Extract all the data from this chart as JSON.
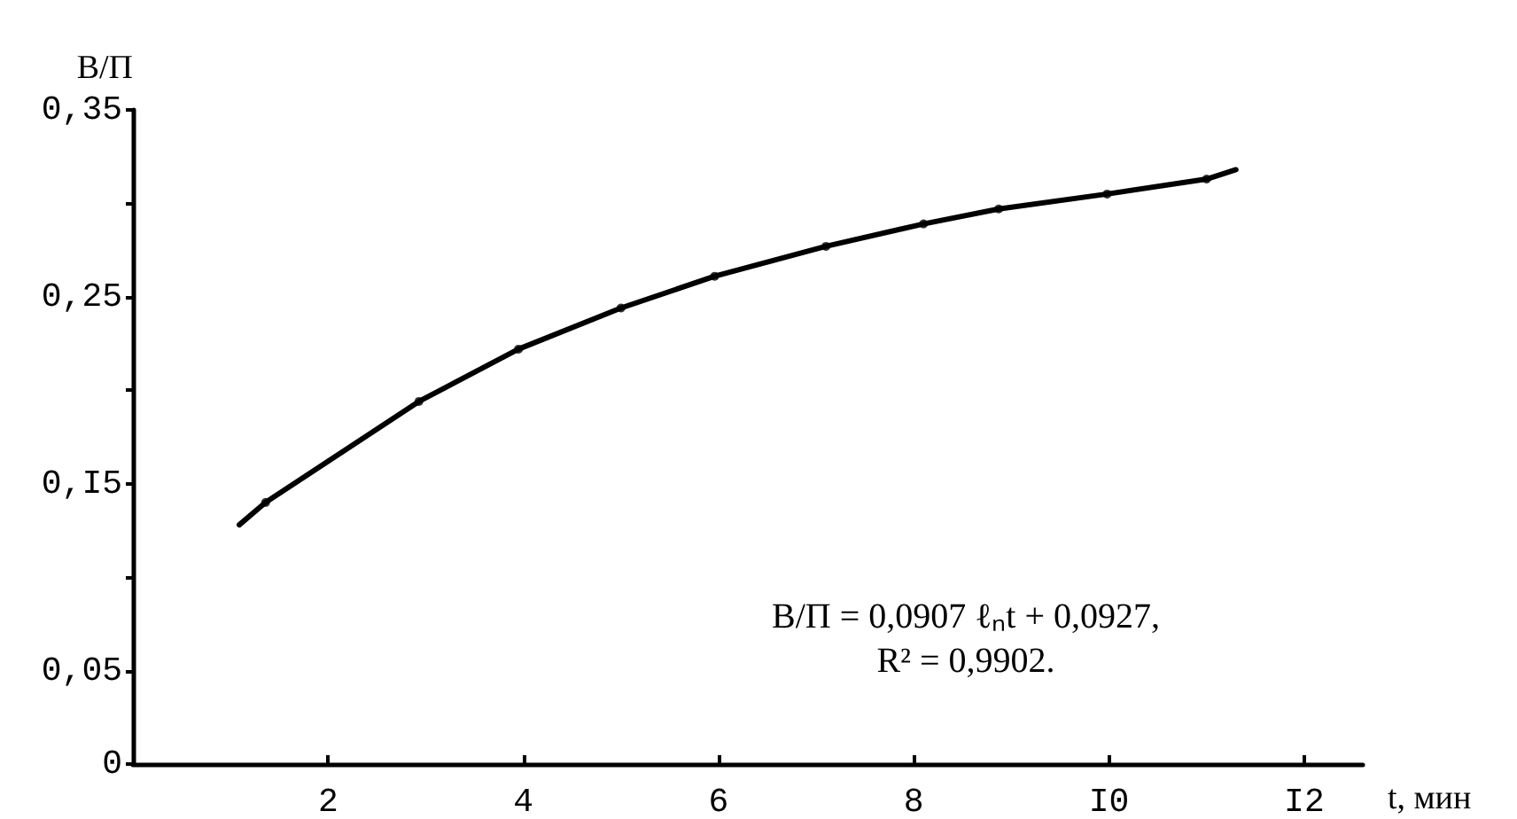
{
  "chart_data": {
    "type": "line",
    "xlabel": "t, мин",
    "ylabel": "В/П",
    "xlim": [
      0,
      12.6
    ],
    "ylim": [
      0,
      0.35
    ],
    "xticks": [
      2,
      4,
      6,
      8,
      {
        "value": 10,
        "label": "I0"
      },
      {
        "value": 12,
        "label": "I2"
      }
    ],
    "yticks": [
      0,
      {
        "value": 0.05,
        "label": "0,05"
      },
      {
        "value": 0.1,
        "label": null
      },
      {
        "value": 0.15,
        "label": "0,I5"
      },
      {
        "value": 0.2,
        "label": null
      },
      {
        "value": 0.25,
        "label": "0,25"
      },
      {
        "value": 0.3,
        "label": null
      },
      {
        "value": 0.35,
        "label": "0,35"
      }
    ],
    "grid": false,
    "annotations": [
      "В/П = 0,0907 ℓₙt + 0,0927,",
      "R² = 0,9902."
    ],
    "series": [
      {
        "type": "scatter",
        "color": "#000000",
        "marker": "circle",
        "x": [
          1.36,
          2.93,
          3.95,
          5.0,
          5.96,
          7.1,
          8.1,
          8.87,
          9.98,
          11.0
        ],
        "values": [
          0.14,
          0.194,
          0.222,
          0.244,
          0.261,
          0.277,
          0.289,
          0.297,
          0.305,
          0.313
        ]
      },
      {
        "type": "line",
        "color": "#000000",
        "marker": "none",
        "line_style": "solid",
        "x": [
          1.09,
          1.36,
          2.93,
          3.95,
          5.0,
          5.96,
          7.1,
          8.1,
          8.87,
          9.98,
          11.0,
          11.3
        ],
        "values": [
          0.128,
          0.14,
          0.194,
          0.222,
          0.244,
          0.261,
          0.277,
          0.289,
          0.297,
          0.305,
          0.313,
          0.318
        ]
      }
    ]
  }
}
